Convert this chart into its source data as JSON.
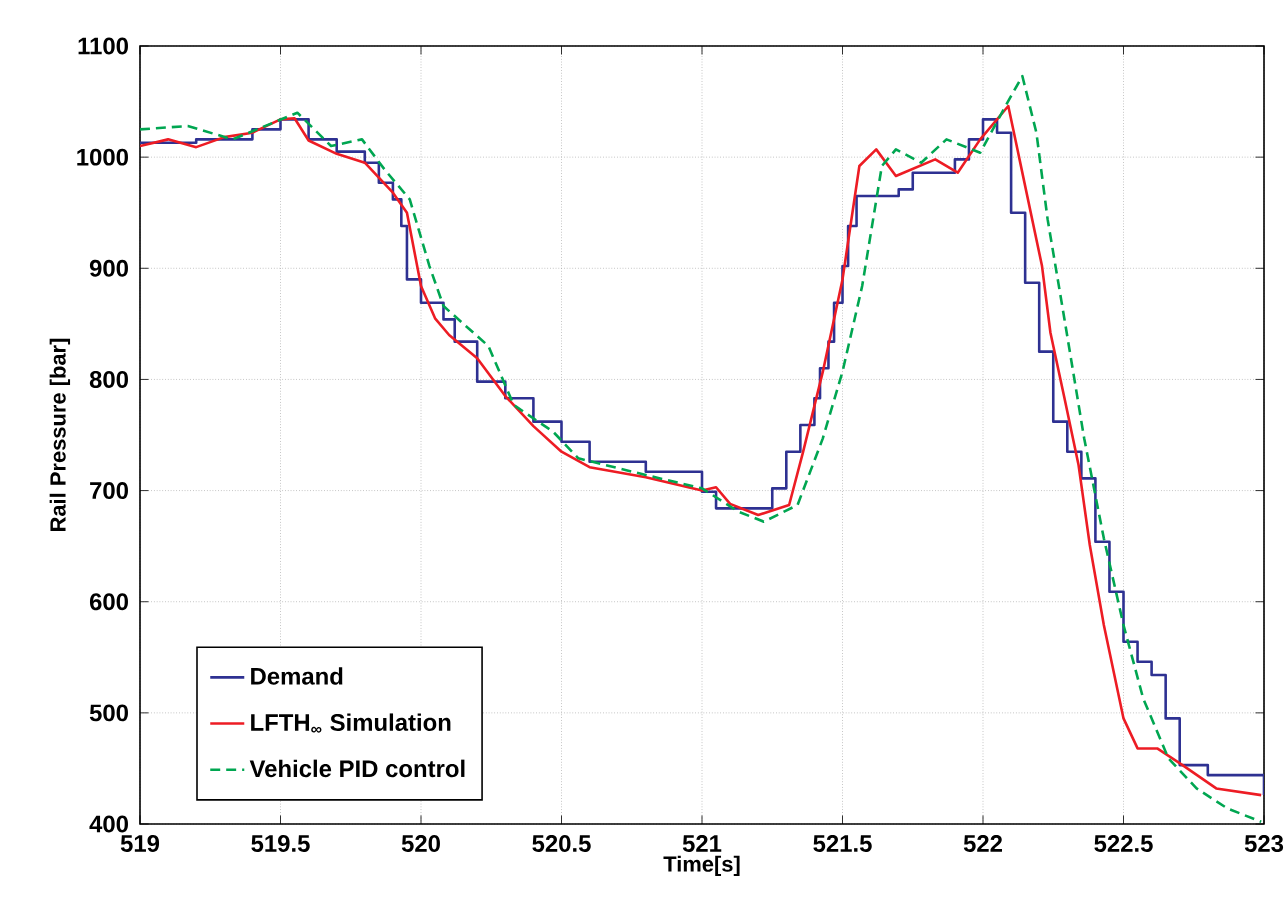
{
  "chart_data": {
    "type": "line",
    "xlabel": "Time[s]",
    "ylabel": "Rail Pressure [bar]",
    "xlim": [
      519,
      523
    ],
    "ylim": [
      400,
      1100
    ],
    "xticks": [
      519,
      519.5,
      520,
      520.5,
      521,
      521.5,
      522,
      522.5,
      523
    ],
    "yticks": [
      400,
      500,
      600,
      700,
      800,
      900,
      1000,
      1100
    ],
    "grid": true,
    "legend": "bottom left",
    "series": [
      {
        "name": "Demand",
        "type": "step",
        "color": "#2e3192",
        "line_style": "solid",
        "x": [
          519,
          519.2,
          519.4,
          519.5,
          519.6,
          519.7,
          519.8,
          519.85,
          519.9,
          519.93,
          519.95,
          520.0,
          520.08,
          520.12,
          520.2,
          520.3,
          520.4,
          520.5,
          520.6,
          520.8,
          521.0,
          521.05,
          521.25,
          521.3,
          521.35,
          521.4,
          521.42,
          521.45,
          521.47,
          521.5,
          521.52,
          521.55,
          521.7,
          521.75,
          521.9,
          521.95,
          522.0,
          522.05,
          522.1,
          522.15,
          522.2,
          522.25,
          522.3,
          522.35,
          522.4,
          522.45,
          522.5,
          522.55,
          522.6,
          522.65,
          522.7,
          522.8,
          523.0
        ],
        "values": [
          1013,
          1016,
          1025,
          1034,
          1016,
          1005,
          995,
          977,
          962,
          938,
          890,
          869,
          854,
          834,
          798,
          783,
          762,
          744,
          726,
          717,
          699,
          684,
          702,
          735,
          759,
          783,
          810,
          834,
          869,
          902,
          938,
          965,
          971,
          986,
          998,
          1016,
          1034,
          1022,
          950,
          887,
          825,
          762,
          735,
          711,
          654,
          609,
          564,
          546,
          534,
          495,
          453,
          444,
          426
        ]
      },
      {
        "name": "LFTH$_{∞}$ Simulation",
        "color": "#ed1c24",
        "line_style": "solid",
        "x": [
          519,
          519.1,
          519.2,
          519.3,
          519.4,
          519.5,
          519.55,
          519.6,
          519.7,
          519.8,
          519.9,
          519.95,
          520.0,
          520.05,
          520.1,
          520.2,
          520.3,
          520.4,
          520.5,
          520.6,
          520.8,
          521.0,
          521.05,
          521.1,
          521.2,
          521.31,
          521.36,
          521.43,
          521.5,
          521.56,
          521.62,
          521.69,
          521.83,
          521.91,
          521.99,
          522.09,
          522.13,
          522.21,
          522.24,
          522.29,
          522.34,
          522.38,
          522.43,
          522.5,
          522.55,
          522.62,
          522.71,
          522.83,
          522.99
        ],
        "values": [
          1010,
          1016,
          1009,
          1018,
          1022,
          1034,
          1035,
          1015,
          1003,
          995,
          968,
          950,
          884,
          855,
          840,
          819,
          785,
          758,
          735,
          721,
          712,
          700,
          703,
          688,
          678,
          687,
          735,
          807,
          890,
          992,
          1007,
          983,
          998,
          986,
          1016,
          1046,
          998,
          902,
          842,
          783,
          723,
          651,
          579,
          495,
          468,
          468,
          453,
          432,
          426
        ]
      },
      {
        "name": "Vehicle PID control",
        "color": "#00a651",
        "line_style": "dashed",
        "x": [
          519,
          519.17,
          519.33,
          519.56,
          519.68,
          519.79,
          519.87,
          519.96,
          520.03,
          520.08,
          520.24,
          520.33,
          520.47,
          520.56,
          520.8,
          521.0,
          521.13,
          521.22,
          521.34,
          521.43,
          521.5,
          521.57,
          521.64,
          521.69,
          521.78,
          521.87,
          521.99,
          522.08,
          522.14,
          522.19,
          522.23,
          522.29,
          522.36,
          522.43,
          522.5,
          522.57,
          522.66,
          522.76,
          522.87,
          522.99
        ],
        "values": [
          1025,
          1028,
          1016,
          1040,
          1010,
          1016,
          989,
          962,
          902,
          866,
          830,
          777,
          753,
          729,
          714,
          702,
          681,
          672,
          687,
          747,
          807,
          884,
          992,
          1007,
          995,
          1016,
          1004,
          1046,
          1073,
          1022,
          944,
          854,
          747,
          657,
          579,
          513,
          459,
          432,
          414,
          402
        ]
      }
    ]
  }
}
